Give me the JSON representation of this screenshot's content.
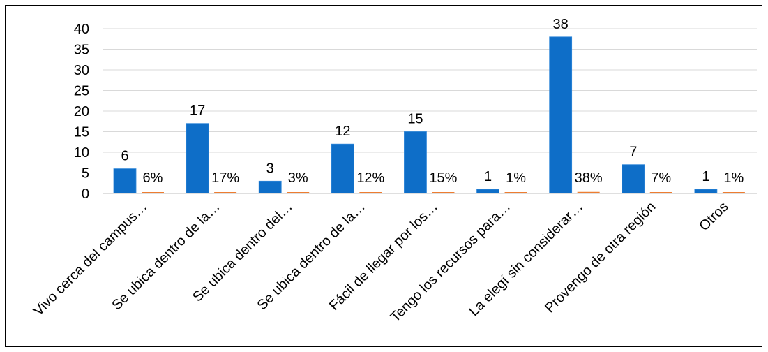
{
  "chart_data": {
    "type": "bar",
    "categories": [
      "Vivo cerca del campus…",
      "Se ubica dentro de la…",
      "Se ubica dentro del…",
      "Se ubica dentro de la…",
      "Fácil de llegar por los…",
      "Tengo los recursos para…",
      "La elegí sin considerar…",
      "Provengo de otra región",
      "Otros"
    ],
    "series": [
      {
        "values": [
          6,
          17,
          3,
          12,
          15,
          1,
          38,
          7,
          1
        ],
        "labels": [
          "6",
          "17",
          "3",
          "12",
          "15",
          "1",
          "38",
          "7",
          "1"
        ],
        "color": "#0e6ec8"
      },
      {
        "values": [
          0.06,
          0.17,
          0.03,
          0.12,
          0.15,
          0.01,
          0.38,
          0.07,
          0.01
        ],
        "labels": [
          "6%",
          "17%",
          "3%",
          "12%",
          "15%",
          "1%",
          "38%",
          "7%",
          "1%"
        ],
        "color": "#ed7d31"
      }
    ],
    "y_ticks": [
      "0",
      "5",
      "10",
      "15",
      "20",
      "25",
      "30",
      "35",
      "40"
    ],
    "ylim": [
      0,
      40
    ],
    "grid": true,
    "legend": "none",
    "gridline_color": "#d9d9d9",
    "axis_color": "#bfbfbf"
  }
}
